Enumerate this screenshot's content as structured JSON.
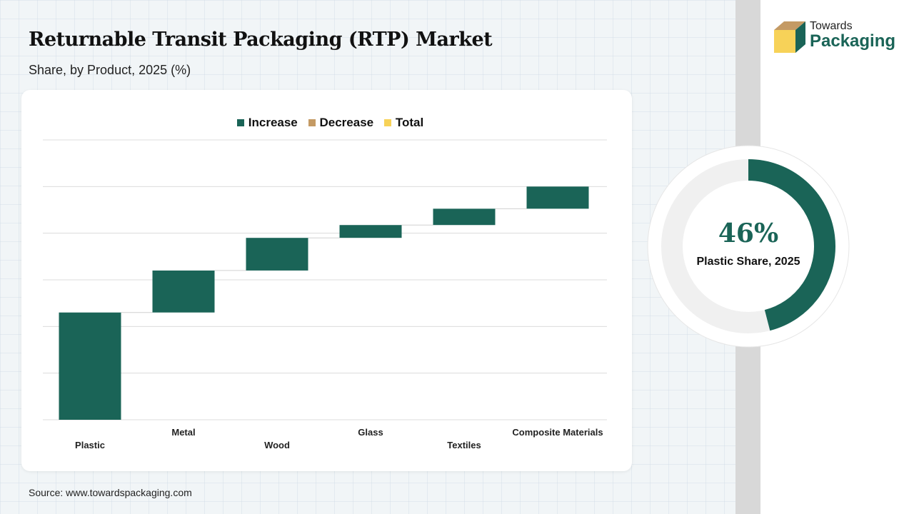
{
  "title": "Returnable Transit Packaging (RTP) Market",
  "subtitle": "Share, by Product, 2025 (%)",
  "source": "Source: www.towardspackaging.com",
  "logo": {
    "line1": "Towards",
    "line2": "Packaging"
  },
  "donut": {
    "value_label": "46%",
    "caption": "Plastic Share, 2025",
    "fraction": 0.46,
    "color": "#1a6457",
    "track": "#f0f0f0"
  },
  "chart_data": {
    "type": "waterfall",
    "legend": [
      {
        "label": "Increase",
        "color": "#1a6457"
      },
      {
        "label": "Decrease",
        "color": "#c49a64"
      },
      {
        "label": "Total",
        "color": "#f7d258"
      }
    ],
    "legend_position": "top",
    "categories": [
      "Plastic",
      "Metal",
      "Wood",
      "Glass",
      "Textiles",
      "Composite Materials"
    ],
    "values": [
      46,
      18,
      14,
      5.5,
      7,
      9.5
    ],
    "ylim": [
      0,
      120
    ],
    "grid": true,
    "y_tick_labels": false
  }
}
